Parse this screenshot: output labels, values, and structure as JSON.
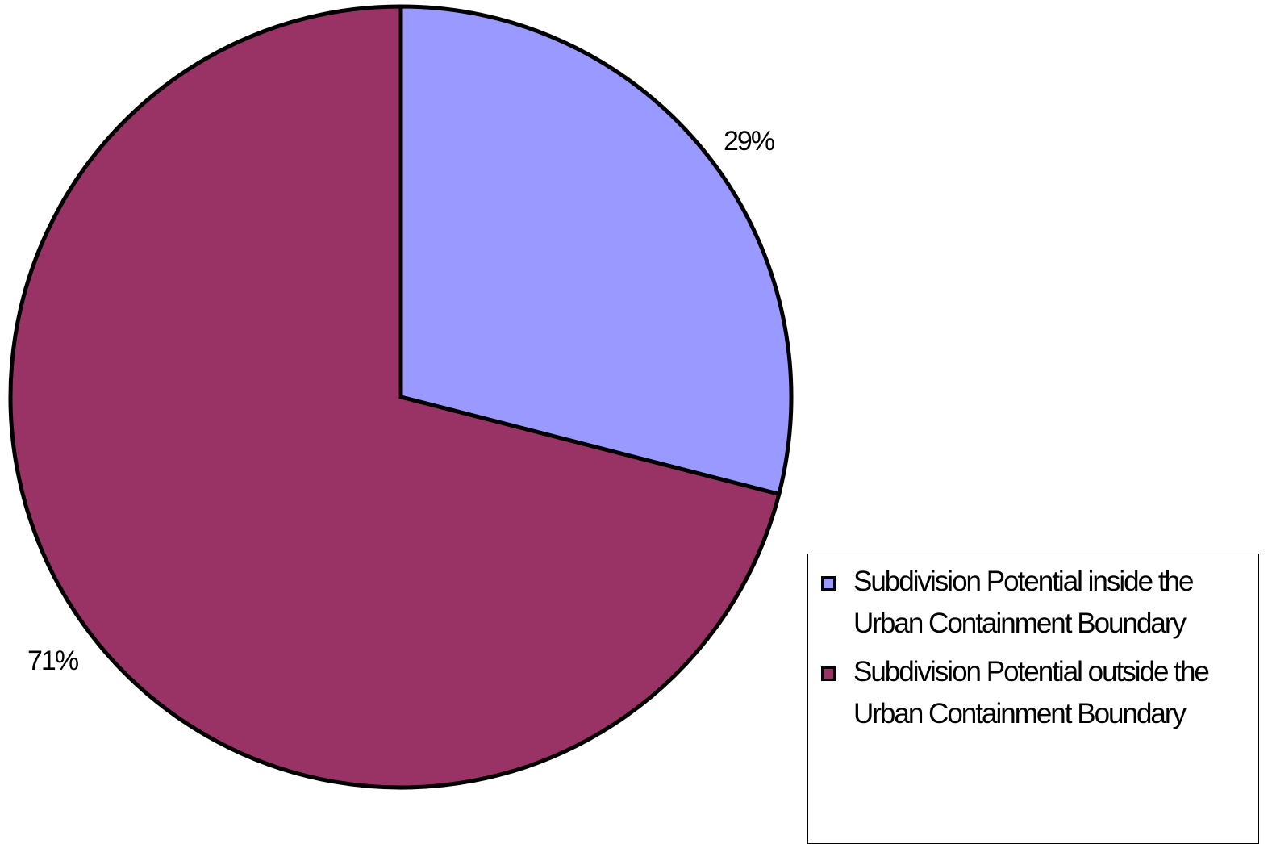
{
  "chart_data": {
    "type": "pie",
    "title": "",
    "slices": [
      {
        "label": "Subdivision Potential inside the Urban Containment Boundary",
        "value": 29,
        "display": "29%",
        "color": "#9999FF"
      },
      {
        "label": "Subdivision Potential outside the Urban Containment Boundary",
        "value": 71,
        "display": "71%",
        "color": "#993366"
      }
    ],
    "start_angle": "12 o'clock",
    "direction": "clockwise",
    "legend_position": "bottom-right"
  },
  "legend": {
    "items": [
      {
        "label": "Subdivision Potential inside the Urban Containment Boundary",
        "color": "#9999FF"
      },
      {
        "label": "Subdivision Potential outside the Urban Containment Boundary",
        "color": "#993366"
      }
    ]
  }
}
